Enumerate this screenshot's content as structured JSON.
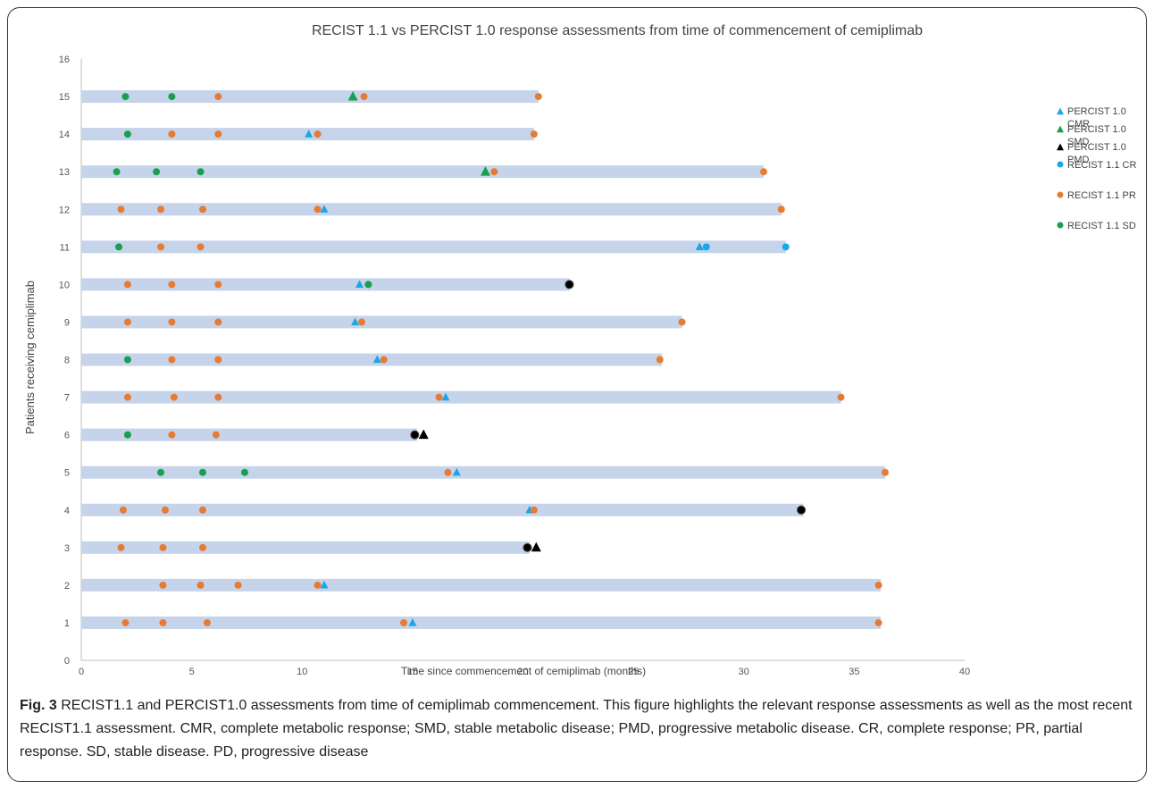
{
  "chart_data": {
    "type": "scatter",
    "title": "RECIST 1.1 vs PERCIST 1.0 response assessments from time of commencement of cemiplimab",
    "xlabel": "Time since commencement of cemiplimab (months)",
    "ylabel": "Patients receiving cemiplimab",
    "xlim": [
      0,
      40
    ],
    "ylim": [
      0,
      16
    ],
    "x_ticks": [
      "0",
      "5",
      "10",
      "15",
      "20",
      "25",
      "30",
      "35",
      "40"
    ],
    "y_ticks": [
      "0",
      "1",
      "2",
      "3",
      "4",
      "5",
      "6",
      "7",
      "8",
      "9",
      "10",
      "11",
      "12",
      "13",
      "14",
      "15",
      "16"
    ],
    "grid": false,
    "legend_position": "right",
    "bar_color": "#c5d4ea",
    "bars": [
      {
        "patient": 1,
        "end": 36.2
      },
      {
        "patient": 2,
        "end": 36.2
      },
      {
        "patient": 3,
        "end": 20.3
      },
      {
        "patient": 4,
        "end": 32.7
      },
      {
        "patient": 5,
        "end": 36.4
      },
      {
        "patient": 6,
        "end": 15.2
      },
      {
        "patient": 7,
        "end": 34.4
      },
      {
        "patient": 8,
        "end": 26.3
      },
      {
        "patient": 9,
        "end": 27.2
      },
      {
        "patient": 10,
        "end": 22.1
      },
      {
        "patient": 11,
        "end": 31.9
      },
      {
        "patient": 12,
        "end": 31.7
      },
      {
        "patient": 13,
        "end": 30.9
      },
      {
        "patient": 14,
        "end": 20.5
      },
      {
        "patient": 15,
        "end": 20.7
      }
    ],
    "series": [
      {
        "name": "PERCIST 1.0 CMR",
        "legend_lines": [
          "PERCIST 1.0",
          "CMR"
        ],
        "marker": "triangle",
        "color": "#1aa7e6",
        "points": [
          [
            15.0,
            1
          ],
          [
            11.0,
            2
          ],
          [
            20.3,
            4
          ],
          [
            17.0,
            5
          ],
          [
            16.5,
            7
          ],
          [
            13.4,
            8
          ],
          [
            12.4,
            9
          ],
          [
            12.6,
            10
          ],
          [
            28.0,
            11
          ],
          [
            11.0,
            12
          ],
          [
            10.3,
            14
          ]
        ]
      },
      {
        "name": "PERCIST 1.0 SMD",
        "legend_lines": [
          "PERCIST 1.0",
          "SMD"
        ],
        "marker": "triangle",
        "color": "#1a9e4f",
        "points": [
          [
            18.3,
            13
          ],
          [
            12.3,
            15
          ]
        ]
      },
      {
        "name": "PERCIST 1.0 PMD",
        "legend_lines": [
          "PERCIST 1.0",
          "PMD"
        ],
        "marker": "triangle",
        "color": "#000000",
        "points": [
          [
            20.6,
            3
          ],
          [
            15.5,
            6
          ]
        ]
      },
      {
        "name": "RECIST 1.1 CR",
        "legend_lines": [
          "RECIST 1.1 CR"
        ],
        "marker": "circle",
        "color": "#1aa7e6",
        "points": [
          [
            28.3,
            11
          ],
          [
            31.9,
            11
          ]
        ]
      },
      {
        "name": "RECIST 1.1 PR",
        "legend_lines": [
          "RECIST 1.1 PR"
        ],
        "marker": "circle",
        "color": "#e87b33",
        "points": [
          [
            2.0,
            1
          ],
          [
            3.7,
            1
          ],
          [
            5.7,
            1
          ],
          [
            14.6,
            1
          ],
          [
            36.1,
            1
          ],
          [
            3.7,
            2
          ],
          [
            5.4,
            2
          ],
          [
            7.1,
            2
          ],
          [
            10.7,
            2
          ],
          [
            36.1,
            2
          ],
          [
            1.8,
            3
          ],
          [
            3.7,
            3
          ],
          [
            5.5,
            3
          ],
          [
            1.9,
            4
          ],
          [
            3.8,
            4
          ],
          [
            5.5,
            4
          ],
          [
            20.5,
            4
          ],
          [
            16.6,
            5
          ],
          [
            36.4,
            5
          ],
          [
            4.1,
            6
          ],
          [
            6.1,
            6
          ],
          [
            2.1,
            7
          ],
          [
            4.2,
            7
          ],
          [
            6.2,
            7
          ],
          [
            16.2,
            7
          ],
          [
            34.4,
            7
          ],
          [
            4.1,
            8
          ],
          [
            6.2,
            8
          ],
          [
            13.7,
            8
          ],
          [
            26.2,
            8
          ],
          [
            2.1,
            9
          ],
          [
            4.1,
            9
          ],
          [
            6.2,
            9
          ],
          [
            12.7,
            9
          ],
          [
            27.2,
            9
          ],
          [
            2.1,
            10
          ],
          [
            4.1,
            10
          ],
          [
            6.2,
            10
          ],
          [
            3.6,
            11
          ],
          [
            5.4,
            11
          ],
          [
            1.8,
            12
          ],
          [
            3.6,
            12
          ],
          [
            5.5,
            12
          ],
          [
            10.7,
            12
          ],
          [
            31.7,
            12
          ],
          [
            18.7,
            13
          ],
          [
            30.9,
            13
          ],
          [
            4.1,
            14
          ],
          [
            6.2,
            14
          ],
          [
            10.7,
            14
          ],
          [
            20.5,
            14
          ],
          [
            6.2,
            15
          ],
          [
            12.8,
            15
          ],
          [
            20.7,
            15
          ]
        ]
      },
      {
        "name": "RECIST 1.1 SD",
        "legend_lines": [
          "RECIST 1.1 SD"
        ],
        "marker": "circle",
        "color": "#1a9e4f",
        "points": [
          [
            2.1,
            6
          ],
          [
            2.1,
            8
          ],
          [
            13.0,
            10
          ],
          [
            1.7,
            11
          ],
          [
            1.6,
            13
          ],
          [
            3.4,
            13
          ],
          [
            5.4,
            13
          ],
          [
            2.1,
            14
          ],
          [
            2.0,
            15
          ],
          [
            4.1,
            15
          ],
          [
            3.6,
            5
          ],
          [
            5.5,
            5
          ],
          [
            7.4,
            5
          ]
        ]
      },
      {
        "name": "",
        "legend_lines": [],
        "marker": "circle",
        "color": "#000000",
        "points": [
          [
            20.2,
            3
          ],
          [
            32.6,
            4
          ],
          [
            15.1,
            6
          ],
          [
            22.1,
            10
          ]
        ]
      }
    ]
  },
  "caption": {
    "label": "Fig. 3",
    "text": " RECIST1.1 and PERCIST1.0 assessments from time of cemiplimab commencement. This figure highlights the relevant response assessments as well as the most recent RECIST1.1 assessment. CMR, complete metabolic response; SMD, stable metabolic disease; PMD, progressive metabolic disease. CR, complete response; PR, partial response. SD, stable disease. PD, progressive disease"
  }
}
